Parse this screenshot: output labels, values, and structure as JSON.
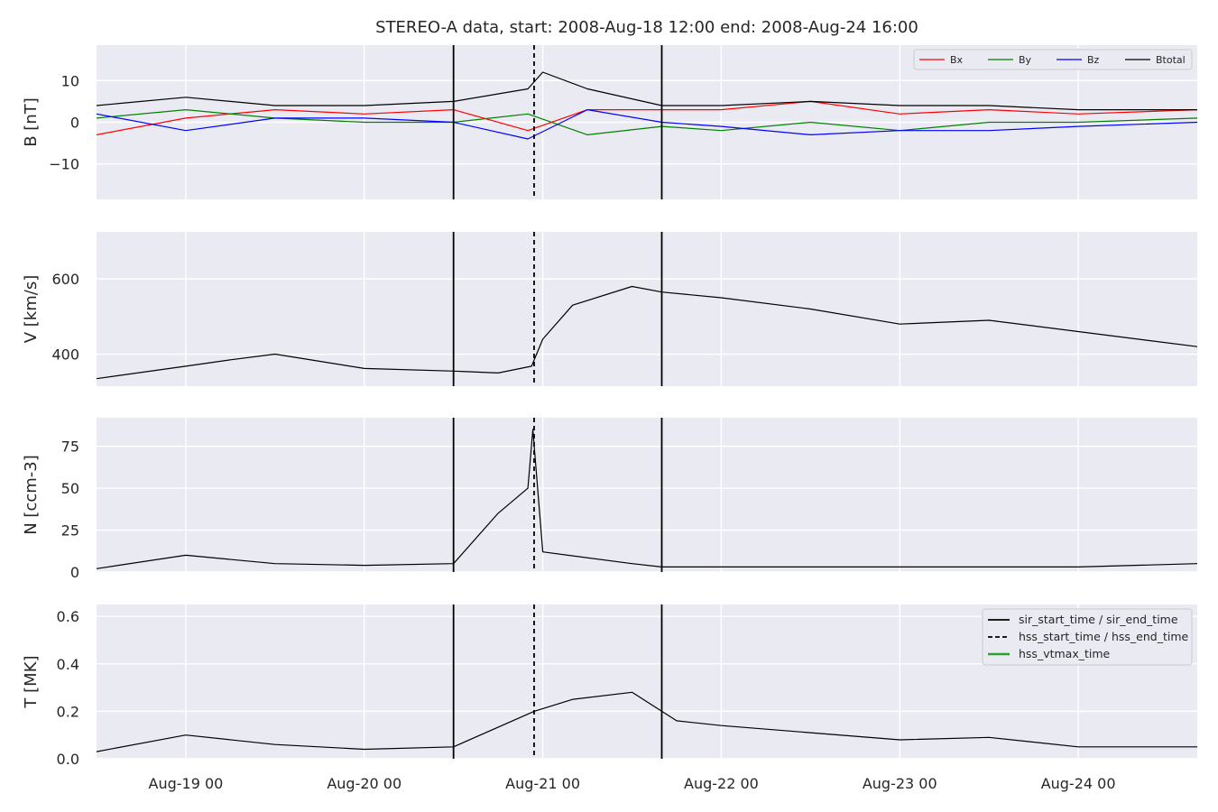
{
  "chart_data": {
    "type": "line",
    "title": "STEREO-A data, start: 2008-Aug-18 12:00  end: 2008-Aug-24 16:00",
    "x_range": [
      "2008-08-18 12:00",
      "2008-08-24 16:00"
    ],
    "x_ticks": [
      "Aug-19 00",
      "Aug-20 00",
      "Aug-21 00",
      "Aug-22 00",
      "Aug-23 00",
      "Aug-24 00"
    ],
    "grid": true,
    "markers": {
      "sir_start_time": "2008-08-20 12:00",
      "hss_start_time": "2008-08-20 22:50",
      "sir_end_time": "2008-08-21 16:00",
      "styles": {
        "sir": "solid",
        "hss": "dashed"
      }
    },
    "marker_legend": {
      "placement": "top-right",
      "entries": [
        {
          "label": "sir_start_time / sir_end_time",
          "color": "#000000",
          "style": "solid"
        },
        {
          "label": "hss_start_time / hss_end_time",
          "color": "#000000",
          "style": "dashed"
        },
        {
          "label": "hss_vtmax_time",
          "color": "#2ca02c",
          "style": "solid"
        }
      ]
    },
    "panels": [
      {
        "ylabel": "B [nT]",
        "ylim": [
          -18.5,
          18.5
        ],
        "yticks": [
          {
            "value": 10,
            "label": "10"
          },
          {
            "value": 0,
            "label": "0"
          },
          {
            "value": -10,
            "label": "−10"
          }
        ],
        "legend": {
          "placement": "top-right"
        },
        "series": [
          {
            "name": "Bx",
            "color": "#ff0000",
            "x": [
              "2008-08-18 12:00",
              "2008-08-19 00:00",
              "2008-08-19 12:00",
              "2008-08-20 00:00",
              "2008-08-20 12:00",
              "2008-08-20 22:00",
              "2008-08-21 06:00",
              "2008-08-21 16:00",
              "2008-08-22 00:00",
              "2008-08-22 12:00",
              "2008-08-23 00:00",
              "2008-08-23 12:00",
              "2008-08-24 00:00",
              "2008-08-24 16:00"
            ],
            "y": [
              -3,
              1,
              3,
              2,
              3,
              -2,
              3,
              3,
              3,
              5,
              2,
              3,
              2,
              3
            ]
          },
          {
            "name": "By",
            "color": "#008000",
            "x": [
              "2008-08-18 12:00",
              "2008-08-19 00:00",
              "2008-08-19 12:00",
              "2008-08-20 00:00",
              "2008-08-20 12:00",
              "2008-08-20 22:00",
              "2008-08-21 06:00",
              "2008-08-21 16:00",
              "2008-08-22 00:00",
              "2008-08-22 12:00",
              "2008-08-23 00:00",
              "2008-08-23 12:00",
              "2008-08-24 00:00",
              "2008-08-24 16:00"
            ],
            "y": [
              1,
              3,
              1,
              0,
              0,
              2,
              -3,
              -1,
              -2,
              0,
              -2,
              0,
              0,
              1
            ]
          },
          {
            "name": "Bz",
            "color": "#0000ff",
            "x": [
              "2008-08-18 12:00",
              "2008-08-19 00:00",
              "2008-08-19 12:00",
              "2008-08-20 00:00",
              "2008-08-20 12:00",
              "2008-08-20 22:00",
              "2008-08-21 06:00",
              "2008-08-21 16:00",
              "2008-08-22 00:00",
              "2008-08-22 12:00",
              "2008-08-23 00:00",
              "2008-08-23 12:00",
              "2008-08-24 00:00",
              "2008-08-24 16:00"
            ],
            "y": [
              2,
              -2,
              1,
              1,
              0,
              -4,
              3,
              0,
              -1,
              -3,
              -2,
              -2,
              -1,
              0
            ]
          },
          {
            "name": "Btotal",
            "color": "#000000",
            "x": [
              "2008-08-18 12:00",
              "2008-08-19 00:00",
              "2008-08-19 12:00",
              "2008-08-20 00:00",
              "2008-08-20 12:00",
              "2008-08-20 22:00",
              "2008-08-21 00:00",
              "2008-08-21 06:00",
              "2008-08-21 16:00",
              "2008-08-22 00:00",
              "2008-08-22 12:00",
              "2008-08-23 00:00",
              "2008-08-23 12:00",
              "2008-08-24 00:00",
              "2008-08-24 16:00"
            ],
            "y": [
              4,
              6,
              4,
              4,
              5,
              8,
              12,
              8,
              4,
              4,
              5,
              4,
              4,
              3,
              3
            ]
          }
        ]
      },
      {
        "ylabel": "V [km/s]",
        "ylim": [
          315,
          725
        ],
        "yticks": [
          {
            "value": 600,
            "label": "600"
          },
          {
            "value": 400,
            "label": "400"
          }
        ],
        "series": [
          {
            "name": "",
            "color": "#000000",
            "x": [
              "2008-08-18 12:00",
              "2008-08-19 00:00",
              "2008-08-19 06:00",
              "2008-08-19 12:00",
              "2008-08-20 00:00",
              "2008-08-20 12:00",
              "2008-08-20 18:00",
              "2008-08-20 22:30",
              "2008-08-21 00:00",
              "2008-08-21 04:00",
              "2008-08-21 12:00",
              "2008-08-21 16:00",
              "2008-08-22 00:00",
              "2008-08-22 12:00",
              "2008-08-23 00:00",
              "2008-08-23 12:00",
              "2008-08-24 00:00",
              "2008-08-24 16:00"
            ],
            "y": [
              335,
              368,
              385,
              400,
              362,
              355,
              350,
              368,
              440,
              530,
              580,
              565,
              550,
              520,
              480,
              490,
              460,
              420
            ]
          }
        ]
      },
      {
        "ylabel": "N [ccm-3]",
        "ylim": [
          0,
          92
        ],
        "yticks": [
          {
            "value": 75,
            "label": "75"
          },
          {
            "value": 50,
            "label": "50"
          },
          {
            "value": 25,
            "label": "25"
          },
          {
            "value": 0,
            "label": "0"
          }
        ],
        "series": [
          {
            "name": "",
            "color": "#000000",
            "x": [
              "2008-08-18 12:00",
              "2008-08-19 00:00",
              "2008-08-19 12:00",
              "2008-08-20 00:00",
              "2008-08-20 12:00",
              "2008-08-20 18:00",
              "2008-08-20 22:00",
              "2008-08-20 22:40",
              "2008-08-21 00:00",
              "2008-08-21 12:00",
              "2008-08-21 16:00",
              "2008-08-22 00:00",
              "2008-08-23 00:00",
              "2008-08-24 00:00",
              "2008-08-24 16:00"
            ],
            "y": [
              2,
              10,
              5,
              4,
              5,
              35,
              50,
              85,
              12,
              5,
              3,
              3,
              3,
              3,
              5
            ]
          }
        ]
      },
      {
        "ylabel": "T [MK]",
        "ylim": [
          0,
          0.65
        ],
        "yticks": [
          {
            "value": 0.6,
            "label": "0.6"
          },
          {
            "value": 0.4,
            "label": "0.4"
          },
          {
            "value": 0.2,
            "label": "0.2"
          },
          {
            "value": 0.0,
            "label": "0.0"
          }
        ],
        "series": [
          {
            "name": "",
            "color": "#000000",
            "x": [
              "2008-08-18 12:00",
              "2008-08-19 00:00",
              "2008-08-19 12:00",
              "2008-08-20 00:00",
              "2008-08-20 12:00",
              "2008-08-20 22:50",
              "2008-08-21 04:00",
              "2008-08-21 12:00",
              "2008-08-21 18:00",
              "2008-08-22 00:00",
              "2008-08-22 12:00",
              "2008-08-23 00:00",
              "2008-08-23 12:00",
              "2008-08-24 00:00",
              "2008-08-24 16:00"
            ],
            "y": [
              0.03,
              0.1,
              0.06,
              0.04,
              0.05,
              0.2,
              0.25,
              0.28,
              0.16,
              0.14,
              0.11,
              0.08,
              0.09,
              0.05,
              0.05
            ]
          }
        ]
      }
    ]
  }
}
